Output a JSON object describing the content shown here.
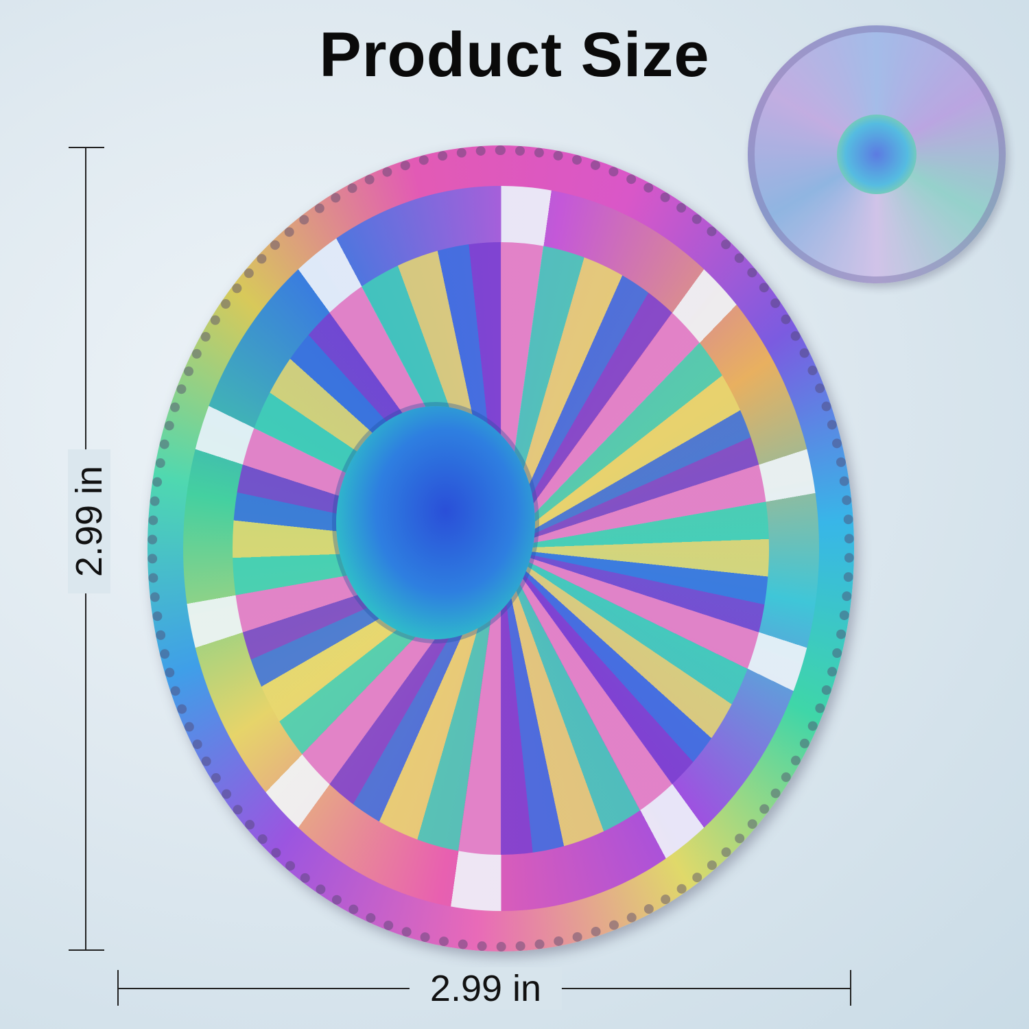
{
  "title": "Product Size",
  "dimensions": {
    "height_label": "2.99 in",
    "width_label": "2.99 in"
  },
  "images": {
    "main": "rainbow-fidget-spinner",
    "inset": "spinning-fidget-spinner"
  }
}
